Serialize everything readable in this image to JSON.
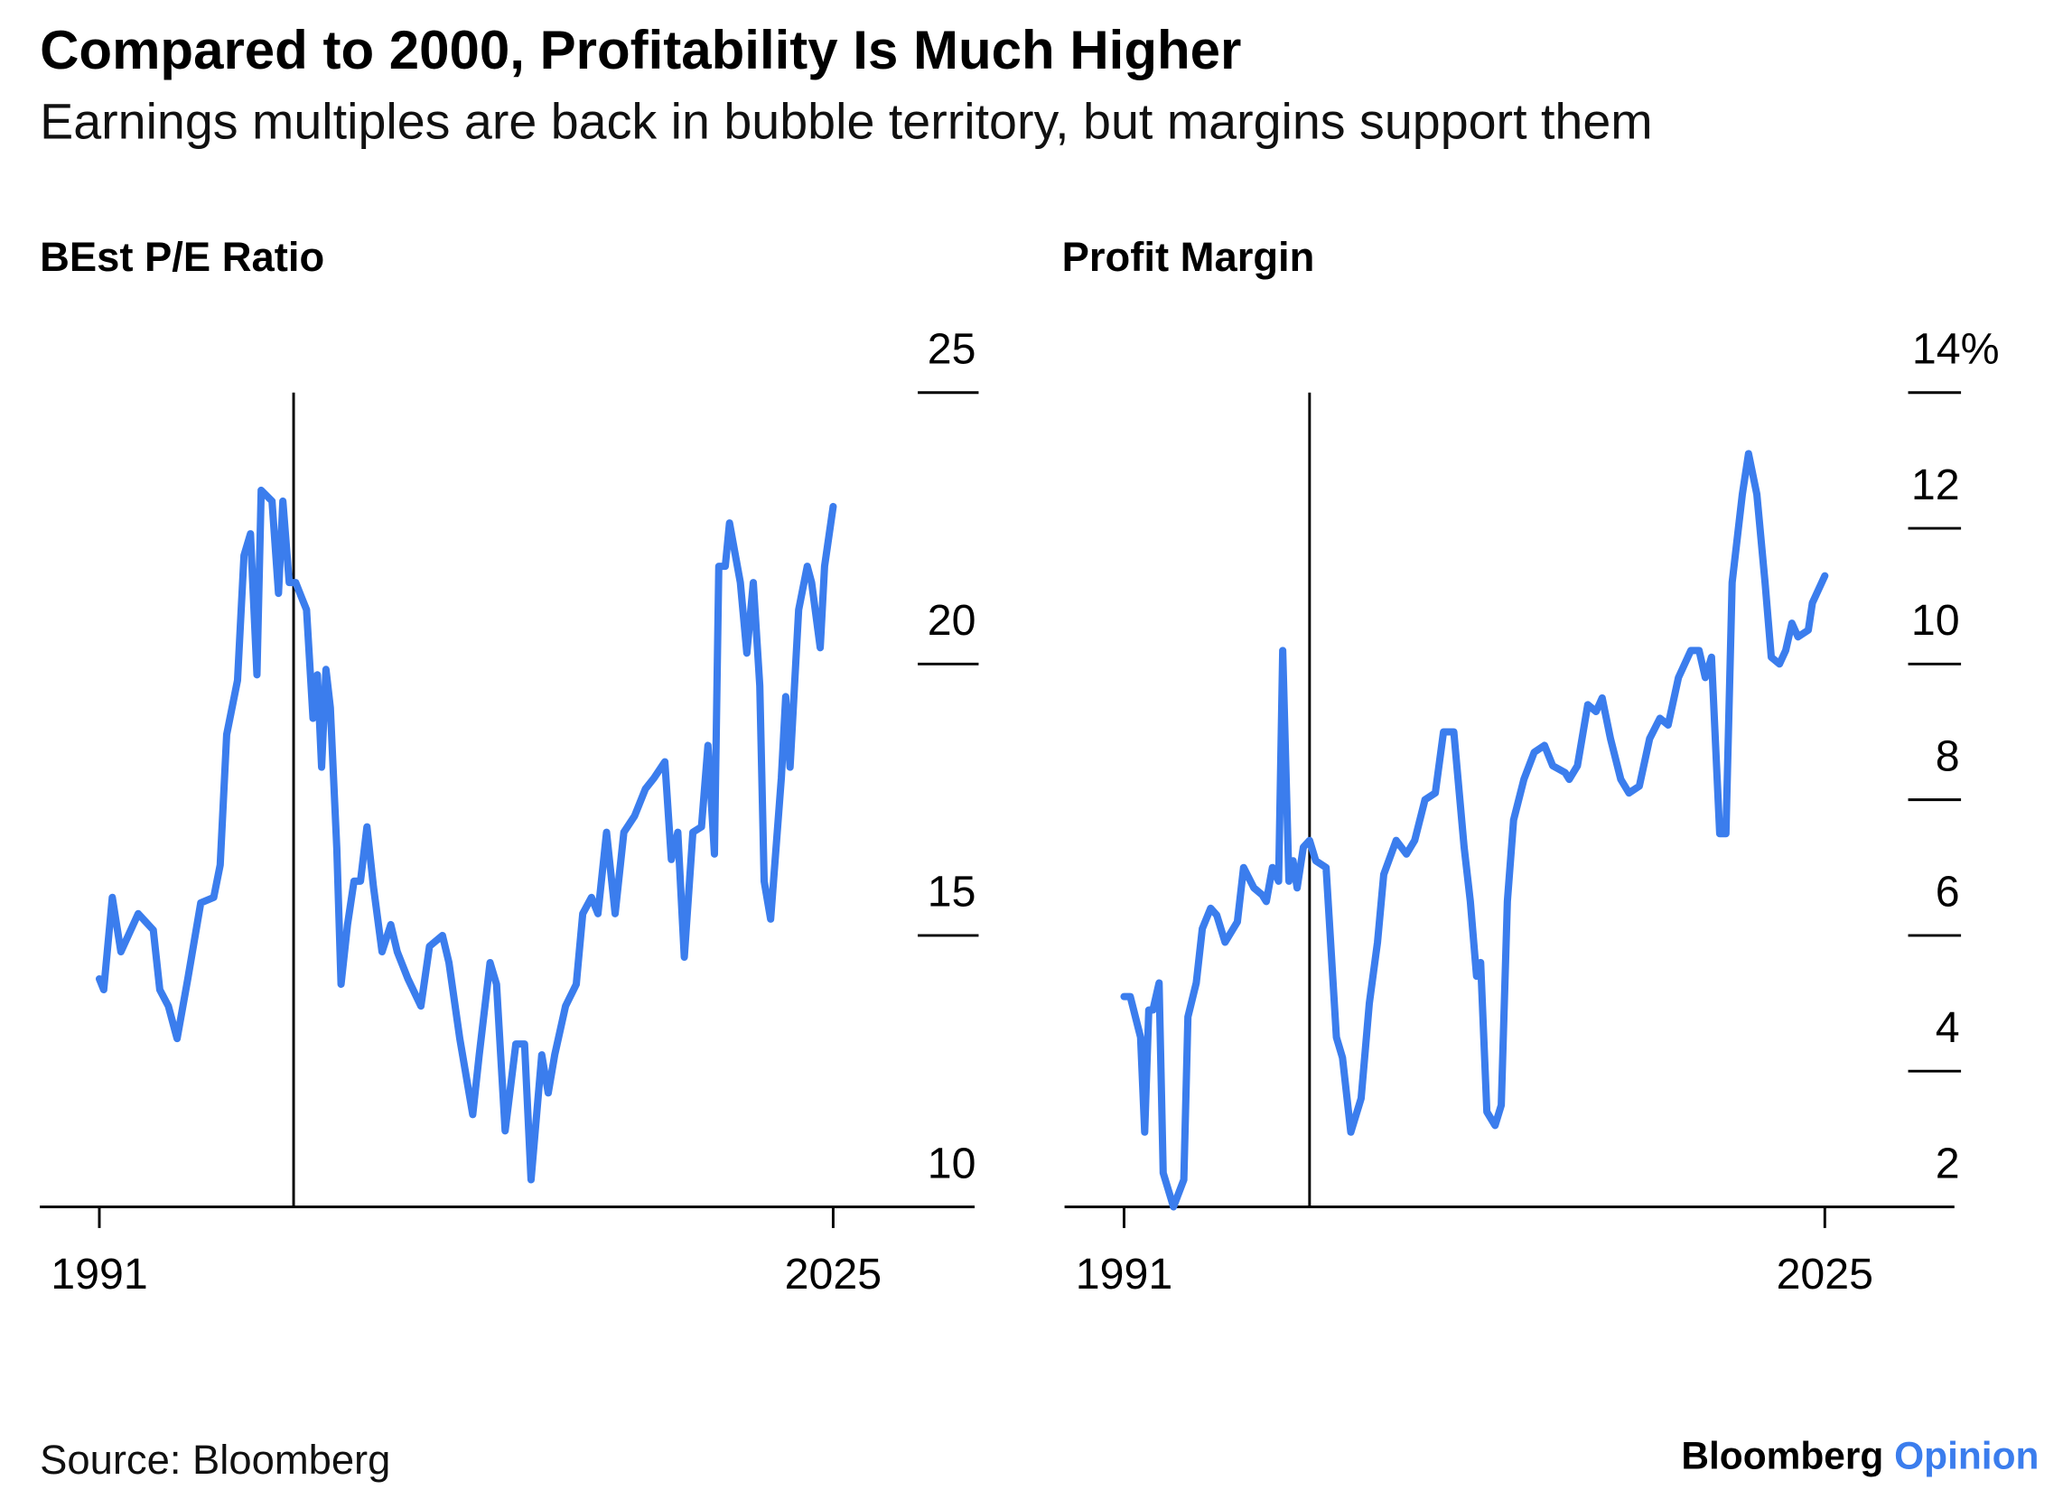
{
  "title": "Compared to 2000, Profitability Is Much Higher",
  "subtitle": "Earnings multiples are back in bubble territory, but margins support them",
  "source": "Source: Bloomberg",
  "brand": {
    "name": "Bloomberg",
    "suffix": "Opinion",
    "suffix_color": "#3b7ded"
  },
  "colors": {
    "line": "#3b7ded",
    "axis": "#000000"
  },
  "chart_data": [
    {
      "type": "line",
      "title": "BEst P/E Ratio",
      "xlabel": "",
      "ylabel": "",
      "xlim": [
        1991,
        2025
      ],
      "ylim": [
        10,
        25
      ],
      "x_ticks": [
        1991,
        2025
      ],
      "x_tick_labels": [
        "1991",
        "2025"
      ],
      "y_ticks": [
        25,
        20,
        15,
        10
      ],
      "y_tick_labels": [
        "25",
        "20",
        "15",
        "10"
      ],
      "marker_year": 2000,
      "series": [
        {
          "name": "BEst P/E Ratio",
          "x": [
            1991.0,
            1991.2,
            1991.6,
            1992.0,
            1992.8,
            1993.5,
            1993.8,
            1994.2,
            1994.6,
            1995.1,
            1995.7,
            1996.3,
            1996.6,
            1996.9,
            1997.4,
            1997.7,
            1998.0,
            1998.3,
            1998.5,
            1999.0,
            1999.3,
            1999.5,
            1999.8,
            2000.1,
            2000.4,
            2000.6,
            2000.9,
            2001.1,
            2001.3,
            2001.5,
            2001.7,
            2002.0,
            2002.2,
            2002.5,
            2002.8,
            2003.1,
            2003.4,
            2003.7,
            2004.1,
            2004.5,
            2004.8,
            2005.3,
            2005.9,
            2006.3,
            2006.9,
            2007.2,
            2007.7,
            2008.3,
            2008.6,
            2009.1,
            2009.4,
            2009.8,
            2010.3,
            2010.7,
            2011.0,
            2011.5,
            2011.8,
            2012.1,
            2012.6,
            2013.1,
            2013.4,
            2013.8,
            2014.1,
            2014.5,
            2014.9,
            2015.3,
            2015.8,
            2016.3,
            2016.7,
            2017.2,
            2017.5,
            2017.8,
            2018.1,
            2018.5,
            2018.9,
            2019.2,
            2019.5,
            2019.7,
            2020.0,
            2020.2,
            2020.7,
            2021.0,
            2021.3,
            2021.6,
            2021.8,
            2022.1,
            2022.6,
            2022.8,
            2023.0,
            2023.4,
            2023.8,
            2024.0,
            2024.4,
            2024.6,
            2025.0
          ],
          "y": [
            14.2,
            14.0,
            15.7,
            14.7,
            15.4,
            15.1,
            14.0,
            13.7,
            13.1,
            14.2,
            15.6,
            15.7,
            16.3,
            18.7,
            19.7,
            22.0,
            22.4,
            19.8,
            23.2,
            23.0,
            21.3,
            23.0,
            21.5,
            21.5,
            21.2,
            21.0,
            19.0,
            19.8,
            18.1,
            19.9,
            19.2,
            16.6,
            14.1,
            15.2,
            16.0,
            16.0,
            17.0,
            15.9,
            14.7,
            15.2,
            14.7,
            14.2,
            13.7,
            14.8,
            15.0,
            14.5,
            13.1,
            11.7,
            12.8,
            14.5,
            14.1,
            11.4,
            13.0,
            13.0,
            10.5,
            12.8,
            12.1,
            12.8,
            13.7,
            14.1,
            15.4,
            15.7,
            15.4,
            16.9,
            15.4,
            16.9,
            17.2,
            17.7,
            17.9,
            18.2,
            16.4,
            16.9,
            14.6,
            16.9,
            17.0,
            18.5,
            16.5,
            21.8,
            21.8,
            22.6,
            21.5,
            20.2,
            21.5,
            19.6,
            16.0,
            15.3,
            17.9,
            19.4,
            18.1,
            21.0,
            21.8,
            21.5,
            20.3,
            21.8,
            22.9
          ]
        }
      ]
    },
    {
      "type": "line",
      "title": "Profit Margin",
      "xlabel": "",
      "ylabel": "",
      "xlim": [
        1991,
        2025
      ],
      "ylim": [
        2,
        14
      ],
      "x_ticks": [
        1991,
        2025
      ],
      "x_tick_labels": [
        "1991",
        "2025"
      ],
      "y_ticks": [
        14,
        12,
        10,
        8,
        6,
        4,
        2
      ],
      "y_tick_labels": [
        "14%",
        "12",
        "10",
        "8",
        "6",
        "4",
        "2"
      ],
      "marker_year": 2000,
      "series": [
        {
          "name": "Profit Margin (%)",
          "x": [
            1991.0,
            1991.3,
            1991.8,
            1992.0,
            1992.2,
            1992.4,
            1992.7,
            1992.9,
            1993.4,
            1993.9,
            1994.1,
            1994.5,
            1994.8,
            1995.2,
            1995.5,
            1995.9,
            1996.5,
            1996.8,
            1997.3,
            1997.7,
            1997.9,
            1998.2,
            1998.5,
            1998.7,
            1999.0,
            1999.2,
            1999.4,
            1999.7,
            2000.0,
            2000.3,
            2000.8,
            2001.3,
            2001.6,
            2002.0,
            2002.5,
            2002.9,
            2003.3,
            2003.6,
            2004.2,
            2004.7,
            2005.1,
            2005.6,
            2006.1,
            2006.5,
            2007.0,
            2007.5,
            2007.8,
            2008.1,
            2008.3,
            2008.6,
            2009.0,
            2009.3,
            2009.6,
            2009.9,
            2010.4,
            2010.9,
            2011.4,
            2011.8,
            2012.4,
            2012.6,
            2013.0,
            2013.5,
            2013.9,
            2014.2,
            2014.6,
            2015.1,
            2015.5,
            2016.0,
            2016.5,
            2017.0,
            2017.4,
            2017.9,
            2018.5,
            2018.9,
            2019.2,
            2019.5,
            2019.9,
            2020.2,
            2020.5,
            2021.0,
            2021.3,
            2021.7,
            2022.1,
            2022.4,
            2022.8,
            2023.1,
            2023.4,
            2023.7,
            2024.2,
            2024.4,
            2025.0
          ],
          "y": [
            5.1,
            5.1,
            4.5,
            3.1,
            4.9,
            4.9,
            5.3,
            2.5,
            2.0,
            2.4,
            4.8,
            5.3,
            6.1,
            6.4,
            6.3,
            5.9,
            6.2,
            7.0,
            6.7,
            6.6,
            6.5,
            7.0,
            6.8,
            10.2,
            6.8,
            7.1,
            6.7,
            7.3,
            7.4,
            7.1,
            7.0,
            4.5,
            4.2,
            3.1,
            3.6,
            5.0,
            5.9,
            6.9,
            7.4,
            7.2,
            7.4,
            8.0,
            8.1,
            9.0,
            9.0,
            7.3,
            6.5,
            5.4,
            5.6,
            3.4,
            3.2,
            3.5,
            6.5,
            7.7,
            8.3,
            8.7,
            8.8,
            8.5,
            8.4,
            8.3,
            8.5,
            9.4,
            9.3,
            9.5,
            8.9,
            8.3,
            8.1,
            8.2,
            8.9,
            9.2,
            9.1,
            9.8,
            10.2,
            10.2,
            9.8,
            10.1,
            7.5,
            7.5,
            11.2,
            12.5,
            13.1,
            12.5,
            11.2,
            10.1,
            10.0,
            10.2,
            10.6,
            10.4,
            10.5,
            10.9,
            11.3
          ]
        }
      ]
    }
  ]
}
